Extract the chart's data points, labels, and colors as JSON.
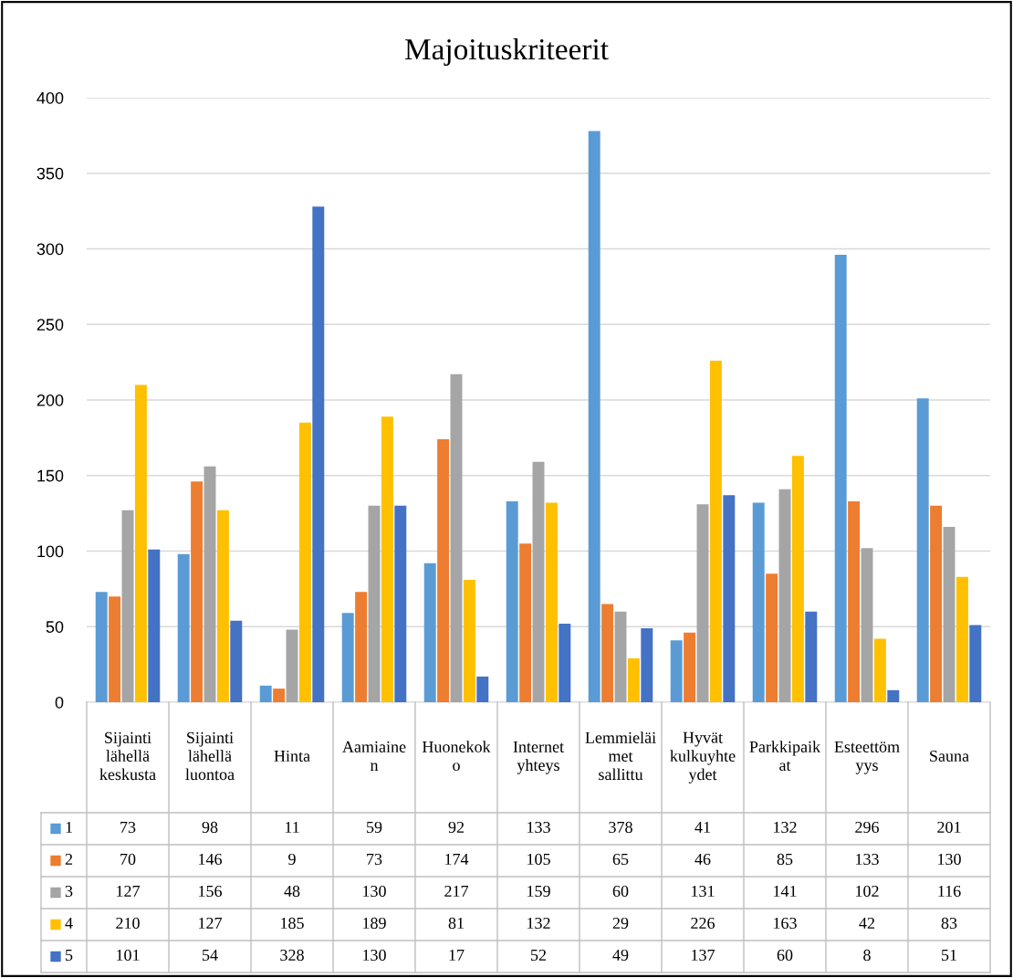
{
  "chart_data": {
    "type": "bar",
    "title": "Majoituskriteerit",
    "categories": [
      "Sijainti lähellä keskusta",
      "Sijainti lähellä luontoa",
      "Hinta",
      "Aamiainen",
      "Huonekoko",
      "Internet yhteys",
      "Lemmieläimet sallittu",
      "Hyvät kulkuyhteydet",
      "Parkkipaikat",
      "Esteettömyys",
      "Sauna"
    ],
    "series": [
      {
        "name": "1",
        "color": "#5b9bd5",
        "values": [
          73,
          98,
          11,
          59,
          92,
          133,
          378,
          41,
          132,
          296,
          201
        ]
      },
      {
        "name": "2",
        "color": "#ed7d31",
        "values": [
          70,
          146,
          9,
          73,
          174,
          105,
          65,
          46,
          85,
          133,
          130
        ]
      },
      {
        "name": "3",
        "color": "#a5a5a5",
        "values": [
          127,
          156,
          48,
          130,
          217,
          159,
          60,
          131,
          141,
          102,
          116
        ]
      },
      {
        "name": "4",
        "color": "#ffc000",
        "values": [
          210,
          127,
          185,
          189,
          81,
          132,
          29,
          226,
          163,
          42,
          83
        ]
      },
      {
        "name": "5",
        "color": "#4472c4",
        "values": [
          101,
          54,
          328,
          130,
          17,
          52,
          49,
          137,
          60,
          8,
          51
        ]
      }
    ],
    "ylim": [
      0,
      400
    ],
    "yticks": [
      0,
      50,
      100,
      150,
      200,
      250,
      300,
      350,
      400
    ],
    "grid": "y",
    "legend": "bottom",
    "data_labels": true
  }
}
